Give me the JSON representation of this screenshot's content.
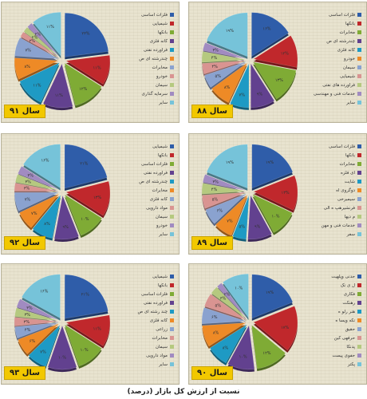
{
  "caption": "نسبت از ارزش کل بازار (درصد)",
  "colors": [
    "#2f5da9",
    "#c0282c",
    "#7fab35",
    "#62418f",
    "#1e9ac4",
    "#ee8a26",
    "#8aa2cf",
    "#d99491",
    "#b5c97f",
    "#a18bc1",
    "#76c3d9",
    "#f0b07d"
  ],
  "chart_data": [
    {
      "type": "pie",
      "year_label": "سال ۹۱",
      "legend": [
        "فلزات اساسی",
        "شیمیایی",
        "بانکها",
        "کانه فلزی",
        "فراورده نفتی",
        "چندرشته ای ص",
        "مخابرات",
        "خودرو",
        "سیمان",
        "سرمایه گذاری",
        "سایر"
      ],
      "values": [
        23,
        11,
        12,
        11,
        11,
        8,
        7,
        2,
        2,
        2,
        11
      ],
      "labels": [
        "۲۳%",
        "۱۱%",
        "۱۲%",
        "۱۱%",
        "۱۱%",
        "۸%",
        "۷%",
        "۲%",
        "۲%",
        "۲%",
        "۱۱%"
      ]
    },
    {
      "type": "pie",
      "year_label": "سال ۸۸",
      "legend": [
        "فلزات اساسی",
        "بانکها",
        "مخابرات",
        "چندرشته ای ص",
        "کانه فلزی",
        "خودرو",
        "سیمان",
        "شیمیایی",
        "فراورده های نفتی",
        "خدمات فنی و مهندسی",
        "سایر"
      ],
      "values": [
        16,
        12,
        13,
        9,
        7,
        8,
        5,
        4,
        4,
        3,
        19
      ],
      "labels": [
        "۱۶%",
        "۱۲%",
        "۱۳%",
        "۹%",
        "۷%",
        "۸%",
        "۵%",
        "۴%",
        "۴%",
        "۳%",
        "۱۹%"
      ]
    },
    {
      "type": "pie",
      "year_label": "سال ۹۲",
      "legend": [
        "شیمیایی",
        "بانکها",
        "فلزات اساسی",
        "فراورده نفتی",
        "چندرشته ای ص",
        "مخابرات",
        "کانه فلزی",
        "مواد دارویی",
        "سیمان",
        "خودرو",
        "سایر"
      ],
      "values": [
        21,
        13,
        10,
        9,
        8,
        7,
        7,
        3,
        3,
        3,
        16
      ],
      "labels": [
        "۲۱%",
        "۱۳%",
        "۱۰%",
        "۹%",
        "۸%",
        "۷%",
        "۷%",
        "۳%",
        "۳%",
        "۳%",
        "۱۶%"
      ]
    },
    {
      "type": "pie",
      "year_label": "سال ۸۹",
      "legend": [
        "فلزات اساسی",
        "بانکها",
        "مخابرات",
        "ای فلزه",
        "شایت",
        "دوگروی اه",
        "سیمیرخی",
        "فرنشیرهپ ه الی",
        "م دیها",
        "خدمات فنی و مهن",
        "سفر"
      ],
      "values": [
        19,
        13,
        10,
        9,
        5,
        7,
        6,
        5,
        4,
        3,
        19
      ],
      "labels": [
        "۱۹%",
        "۱۳%",
        "۱۰%",
        "۹%",
        "۵%",
        "۷%",
        "۶%",
        "۵%",
        "۴%",
        "۳%",
        "۱۹%"
      ]
    },
    {
      "type": "pie",
      "year_label": "سال ۹۳",
      "legend": [
        "شیمیایی",
        "بانکها",
        "فلزات اساسی",
        "فراورده نفتی",
        "چند رشته ای ص",
        "کانه فلزی",
        "زراعی",
        "مخابرات",
        "سیمان",
        "مواد دارویی",
        "سایر"
      ],
      "values": [
        21,
        11,
        10,
        10,
        7,
        6,
        4,
        3,
        3,
        3,
        16
      ],
      "labels": [
        "۲۱%",
        "۱۱%",
        "۱۰%",
        "۱۰%",
        "۷%",
        "۶%",
        "۴%",
        "۳%",
        "۳%",
        "۳%",
        "۱۶%"
      ]
    },
    {
      "type": "pie",
      "year_label": "سال ۹۰",
      "legend": [
        "حدنی وپلهیت",
        "ل ی نک",
        "فکاری",
        "رهنکت",
        "هنر رلو ه",
        "نکه ویسا ه",
        "حقیق",
        "حرفهی کین",
        "پدنکا",
        "حفوی پیست",
        "پکتر"
      ],
      "values": [
        19,
        17,
        12,
        10,
        8,
        8,
        6,
        5,
        3,
        2,
        10
      ],
      "labels": [
        "۱۹%",
        "۱۷%",
        "۱۲%",
        "۱۰%",
        "۸%",
        "۸%",
        "۶%",
        "۵%",
        "۳%",
        "۲%",
        "۱۰%"
      ]
    }
  ]
}
